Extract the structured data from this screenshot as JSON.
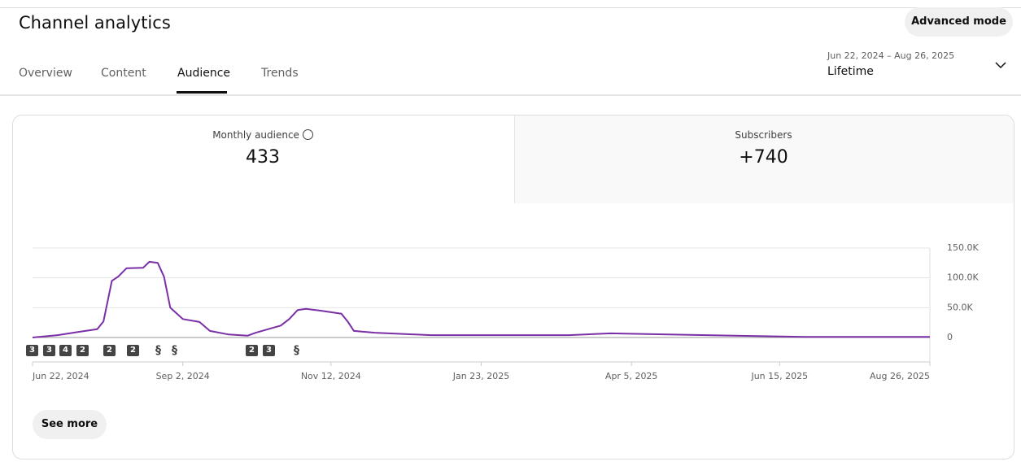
{
  "header": {
    "title": "Channel analytics",
    "button": "Advanced mode"
  },
  "tabs": [
    "Overview",
    "Content",
    "Audience",
    "Trends"
  ],
  "date_range": {
    "range": "Jun 22, 2024 – Aug 26, 2025",
    "period": "Lifetime"
  },
  "cards": [
    {
      "label": "Monthly audience",
      "value": 433
    },
    {
      "label": "Subscribers",
      "value": "+740"
    }
  ],
  "markers": [
    "3",
    "3",
    "4",
    "2",
    "2",
    "2",
    "2",
    "3"
  ],
  "see_more": "See more",
  "chart_data": {
    "type": "line",
    "color": "#7b2fa6",
    "grid": true,
    "x": [
      "2024-06-22",
      "2024-07-04",
      "2024-07-15",
      "2024-07-23",
      "2024-07-26",
      "2024-07-30",
      "2024-08-02",
      "2024-08-06",
      "2024-08-14",
      "2024-08-17",
      "2024-08-21",
      "2024-08-24",
      "2024-08-27",
      "2024-09-02",
      "2024-09-10",
      "2024-09-15",
      "2024-09-24",
      "2024-10-03",
      "2024-10-07",
      "2024-10-19",
      "2024-10-23",
      "2024-10-27",
      "2024-10-31",
      "2024-11-07",
      "2024-11-17",
      "2024-11-20",
      "2024-11-23",
      "2024-12-03",
      "2024-12-30",
      "2025-03-06",
      "2025-03-26",
      "2025-05-11",
      "2025-06-27",
      "2025-08-26"
    ],
    "values": [
      0,
      4000,
      10000,
      14000,
      27000,
      95000,
      102000,
      116000,
      117000,
      127000,
      125000,
      102000,
      50000,
      31000,
      26000,
      11000,
      5000,
      3000,
      8000,
      20000,
      31000,
      46000,
      48000,
      45000,
      40000,
      27000,
      11000,
      8000,
      4000,
      4000,
      7000,
      4000,
      1000,
      1000
    ],
    "xlim": [
      "2024-06-22",
      "2025-08-26"
    ],
    "xticks": [
      {
        "value": "2024-06-22",
        "label": "Jun 22, 2024"
      },
      {
        "value": "2024-09-02",
        "label": "Sep 2, 2024"
      },
      {
        "value": "2024-11-12",
        "label": "Nov 12, 2024"
      },
      {
        "value": "2025-01-23",
        "label": "Jan 23, 2025"
      },
      {
        "value": "2025-04-05",
        "label": "Apr 5, 2025"
      },
      {
        "value": "2025-06-15",
        "label": "Jun 15, 2025"
      },
      {
        "value": "2025-08-26",
        "label": "Aug 26, 2025"
      }
    ],
    "ylim": [
      0,
      150000
    ],
    "yticks": [
      0,
      {
        "value": 50000,
        "label": "50.0K"
      },
      {
        "value": 100000,
        "label": "100.0K"
      },
      {
        "value": 150000,
        "label": "150.0K"
      }
    ]
  }
}
